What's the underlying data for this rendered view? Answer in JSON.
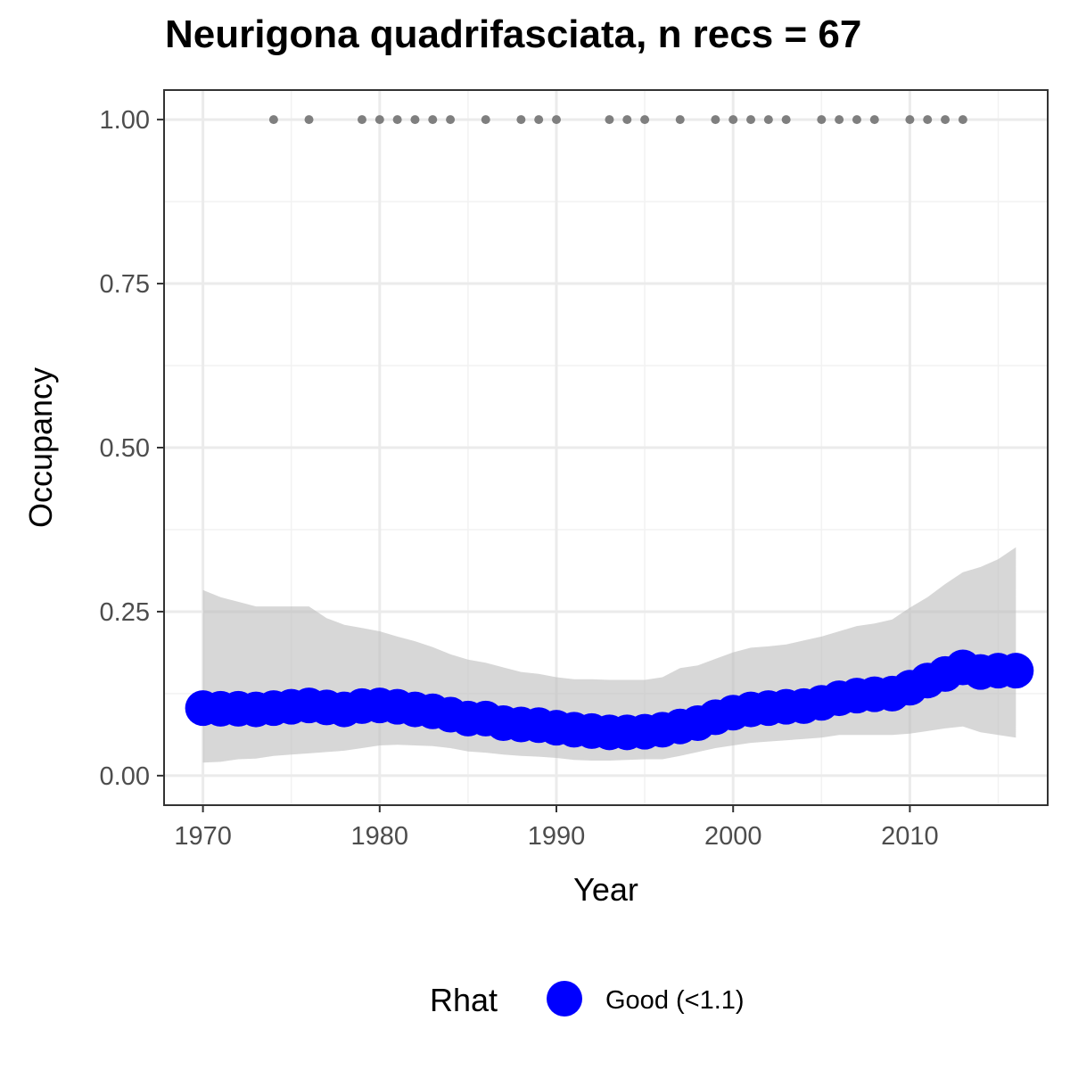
{
  "chart_data": {
    "type": "line",
    "title": "Neurigona quadrifasciata, n recs = 67",
    "xlabel": "Year",
    "ylabel": "Occupancy",
    "xlim": [
      1967.8,
      2017.8
    ],
    "ylim": [
      -0.045,
      1.045
    ],
    "x_ticks": [
      1970,
      1980,
      1990,
      2000,
      2010
    ],
    "x_tick_labels": [
      "1970",
      "1980",
      "1990",
      "2000",
      "2010"
    ],
    "y_ticks": [
      0,
      0.25,
      0.5,
      0.75,
      1.0
    ],
    "y_tick_labels": [
      "0.00",
      "0.25",
      "0.50",
      "0.75",
      "1.00"
    ],
    "grid": true,
    "legend": {
      "title": "Rhat",
      "position": "bottom",
      "entries": [
        {
          "label": "Good (<1.1)",
          "color": "#0000ff"
        }
      ]
    },
    "series": [
      {
        "name": "Good (<1.1)",
        "color": "#0000ff",
        "x": [
          1970,
          1971,
          1972,
          1973,
          1974,
          1975,
          1976,
          1977,
          1978,
          1979,
          1980,
          1981,
          1982,
          1983,
          1984,
          1985,
          1986,
          1987,
          1988,
          1989,
          1990,
          1991,
          1992,
          1993,
          1994,
          1995,
          1996,
          1997,
          1998,
          1999,
          2000,
          2001,
          2002,
          2003,
          2004,
          2005,
          2006,
          2007,
          2008,
          2009,
          2010,
          2011,
          2012,
          2013,
          2014,
          2015,
          2016
        ],
        "y": [
          0.103,
          0.102,
          0.102,
          0.101,
          0.103,
          0.105,
          0.107,
          0.104,
          0.101,
          0.106,
          0.107,
          0.105,
          0.101,
          0.098,
          0.093,
          0.087,
          0.087,
          0.08,
          0.078,
          0.077,
          0.073,
          0.07,
          0.068,
          0.066,
          0.066,
          0.067,
          0.07,
          0.075,
          0.08,
          0.089,
          0.096,
          0.101,
          0.103,
          0.105,
          0.106,
          0.111,
          0.118,
          0.122,
          0.124,
          0.125,
          0.134,
          0.145,
          0.155,
          0.165,
          0.158,
          0.16,
          0.16
        ]
      }
    ],
    "ribbon": {
      "color": "#bfbfbf",
      "x": [
        1970,
        1971,
        1972,
        1973,
        1974,
        1975,
        1976,
        1977,
        1978,
        1979,
        1980,
        1981,
        1982,
        1983,
        1984,
        1985,
        1986,
        1987,
        1988,
        1989,
        1990,
        1991,
        1992,
        1993,
        1994,
        1995,
        1996,
        1997,
        1998,
        1999,
        2000,
        2001,
        2002,
        2003,
        2004,
        2005,
        2006,
        2007,
        2008,
        2009,
        2010,
        2011,
        2012,
        2013,
        2014,
        2015,
        2016
      ],
      "lower": [
        0.02,
        0.021,
        0.025,
        0.026,
        0.03,
        0.032,
        0.034,
        0.036,
        0.038,
        0.042,
        0.046,
        0.047,
        0.046,
        0.045,
        0.042,
        0.037,
        0.035,
        0.032,
        0.03,
        0.029,
        0.027,
        0.024,
        0.023,
        0.023,
        0.024,
        0.025,
        0.025,
        0.03,
        0.036,
        0.042,
        0.046,
        0.05,
        0.052,
        0.054,
        0.056,
        0.058,
        0.062,
        0.062,
        0.062,
        0.062,
        0.064,
        0.068,
        0.072,
        0.075,
        0.066,
        0.062,
        0.058
      ],
      "upper": [
        0.283,
        0.272,
        0.265,
        0.258,
        0.258,
        0.258,
        0.258,
        0.24,
        0.23,
        0.225,
        0.22,
        0.212,
        0.205,
        0.196,
        0.185,
        0.177,
        0.172,
        0.165,
        0.158,
        0.155,
        0.15,
        0.147,
        0.147,
        0.146,
        0.146,
        0.146,
        0.15,
        0.164,
        0.168,
        0.178,
        0.188,
        0.195,
        0.197,
        0.2,
        0.206,
        0.212,
        0.22,
        0.228,
        0.232,
        0.238,
        0.256,
        0.272,
        0.292,
        0.31,
        0.318,
        0.33,
        0.348
      ]
    },
    "records": {
      "color": "#7f7f7f",
      "y": 1.0,
      "x": [
        1974,
        1976,
        1979,
        1980,
        1981,
        1982,
        1983,
        1984,
        1986,
        1988,
        1989,
        1990,
        1993,
        1994,
        1995,
        1997,
        1999,
        2000,
        2001,
        2002,
        2003,
        2005,
        2006,
        2007,
        2008,
        2010,
        2011,
        2012,
        2013
      ]
    }
  }
}
